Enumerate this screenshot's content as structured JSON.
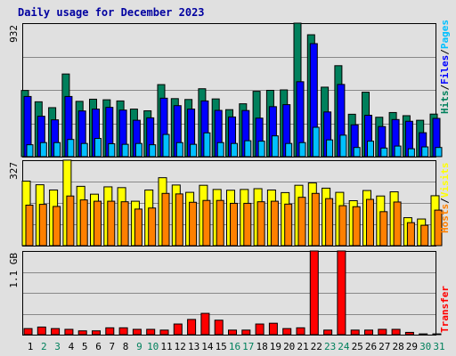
{
  "title": "Daily usage for December 2023",
  "colors": {
    "hits": "#00805c",
    "files": "#0000ff",
    "pages": "#00c0ff",
    "visits": "#ffff00",
    "hosts": "#ff8000",
    "transfer": "#ff0000",
    "weekday": "#000000",
    "weekend": "#00805c"
  },
  "chart_data": [
    {
      "type": "bar",
      "panel": "hits-files-pages",
      "y_max_label": "932",
      "right_label": {
        "hits": "Hits",
        "files": "Files",
        "pages": "Pages"
      },
      "ylim": [
        0,
        932
      ],
      "categories": [
        "1",
        "2",
        "3",
        "4",
        "5",
        "6",
        "7",
        "8",
        "9",
        "10",
        "11",
        "12",
        "13",
        "14",
        "15",
        "16",
        "17",
        "18",
        "19",
        "20",
        "21",
        "22",
        "23",
        "24",
        "25",
        "26",
        "27",
        "28",
        "29",
        "30",
        "31"
      ],
      "weekend": [
        "2",
        "3",
        "9",
        "10",
        "16",
        "17",
        "23",
        "24",
        "30",
        "31"
      ],
      "series": [
        {
          "name": "Hits",
          "values": [
            462,
            383,
            342,
            577,
            386,
            401,
            397,
            389,
            332,
            320,
            503,
            405,
            399,
            474,
            403,
            328,
            369,
            456,
            463,
            466,
            932,
            851,
            485,
            635,
            296,
            450,
            275,
            308,
            286,
            254,
            297
          ]
        },
        {
          "name": "Files",
          "values": [
            420,
            282,
            257,
            420,
            319,
            332,
            344,
            325,
            254,
            271,
            408,
            356,
            332,
            389,
            323,
            277,
            322,
            269,
            349,
            363,
            523,
            789,
            312,
            504,
            222,
            289,
            210,
            259,
            247,
            167,
            267
          ]
        },
        {
          "name": "Pages",
          "values": [
            83,
            98,
            98,
            120,
            92,
            127,
            90,
            86,
            92,
            83,
            155,
            98,
            86,
            166,
            98,
            92,
            111,
            108,
            145,
            92,
            98,
            205,
            117,
            150,
            64,
            108,
            60,
            74,
            55,
            68,
            64
          ]
        }
      ]
    },
    {
      "type": "bar",
      "panel": "visits-hosts",
      "y_max_label": "327",
      "right_label": {
        "visits": "Visits",
        "hosts": "Hosts"
      },
      "ylim": [
        0,
        327
      ],
      "categories": [
        "1",
        "2",
        "3",
        "4",
        "5",
        "6",
        "7",
        "8",
        "9",
        "10",
        "11",
        "12",
        "13",
        "14",
        "15",
        "16",
        "17",
        "18",
        "19",
        "20",
        "21",
        "22",
        "23",
        "24",
        "25",
        "26",
        "27",
        "28",
        "29",
        "30",
        "31"
      ],
      "series": [
        {
          "name": "Visits",
          "values": [
            247,
            233,
            213,
            327,
            227,
            197,
            225,
            222,
            170,
            213,
            260,
            232,
            204,
            231,
            215,
            212,
            215,
            218,
            213,
            203,
            231,
            240,
            220,
            204,
            172,
            211,
            190,
            206,
            107,
            102,
            191
          ]
        },
        {
          "name": "Hosts",
          "values": [
            155,
            158,
            150,
            190,
            175,
            170,
            170,
            168,
            140,
            144,
            200,
            198,
            166,
            173,
            173,
            162,
            162,
            168,
            170,
            159,
            185,
            200,
            180,
            153,
            149,
            177,
            130,
            167,
            88,
            78,
            136
          ]
        }
      ]
    },
    {
      "type": "bar",
      "panel": "transfer",
      "y_max_label": "1.1 GB",
      "right_label": "Transfer",
      "ylim": [
        0,
        1.1
      ],
      "categories": [
        "1",
        "2",
        "3",
        "4",
        "5",
        "6",
        "7",
        "8",
        "9",
        "10",
        "11",
        "12",
        "13",
        "14",
        "15",
        "16",
        "17",
        "18",
        "19",
        "20",
        "21",
        "22",
        "23",
        "24",
        "25",
        "26",
        "27",
        "28",
        "29",
        "30",
        "31"
      ],
      "series": [
        {
          "name": "Transfer",
          "values": [
            0.08,
            0.1,
            0.08,
            0.07,
            0.05,
            0.05,
            0.09,
            0.09,
            0.07,
            0.07,
            0.06,
            0.14,
            0.2,
            0.28,
            0.19,
            0.06,
            0.06,
            0.14,
            0.15,
            0.08,
            0.09,
            1.1,
            0.06,
            1.1,
            0.06,
            0.06,
            0.07,
            0.07,
            0.03,
            0.01,
            0.01
          ]
        }
      ]
    }
  ]
}
